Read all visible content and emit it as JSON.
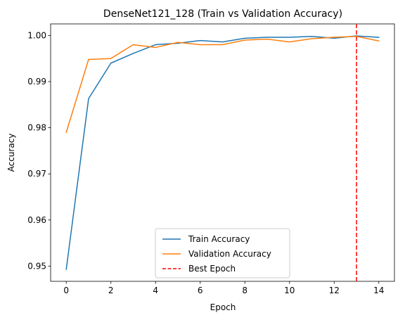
{
  "chart_data": {
    "type": "line",
    "title": "DenseNet121_128 (Train vs Validation Accuracy)",
    "xlabel": "Epoch",
    "ylabel": "Accuracy",
    "xlim": [
      -0.7,
      14.7
    ],
    "ylim": [
      0.9467,
      1.0025
    ],
    "xticks": [
      0,
      2,
      4,
      6,
      8,
      10,
      12,
      14
    ],
    "xtick_labels": [
      "0",
      "2",
      "4",
      "6",
      "8",
      "10",
      "12",
      "14"
    ],
    "yticks": [
      0.95,
      0.96,
      0.97,
      0.98,
      0.99,
      1.0
    ],
    "ytick_labels": [
      "0.95",
      "0.96",
      "0.97",
      "0.98",
      "0.99",
      "1.00"
    ],
    "x": [
      0,
      1,
      2,
      3,
      4,
      5,
      6,
      7,
      8,
      9,
      10,
      11,
      12,
      13,
      14
    ],
    "series": [
      {
        "name": "Train Accuracy",
        "color": "#1f77b4",
        "values": [
          0.9493,
          0.9863,
          0.994,
          0.9961,
          0.998,
          0.9983,
          0.9989,
          0.9986,
          0.9994,
          0.9996,
          0.9996,
          0.9998,
          0.9994,
          0.9999,
          0.9996
        ]
      },
      {
        "name": "Validation Accuracy",
        "color": "#ff7f0e",
        "values": [
          0.979,
          0.9948,
          0.995,
          0.998,
          0.9974,
          0.9985,
          0.998,
          0.998,
          0.999,
          0.9992,
          0.9986,
          0.9993,
          0.9996,
          0.9998,
          0.9988
        ]
      }
    ],
    "vlines": [
      {
        "name": "Best Epoch",
        "x": 13,
        "color": "#ff0000",
        "style": "dashed"
      }
    ],
    "grid": false,
    "legend": "lower-center"
  }
}
